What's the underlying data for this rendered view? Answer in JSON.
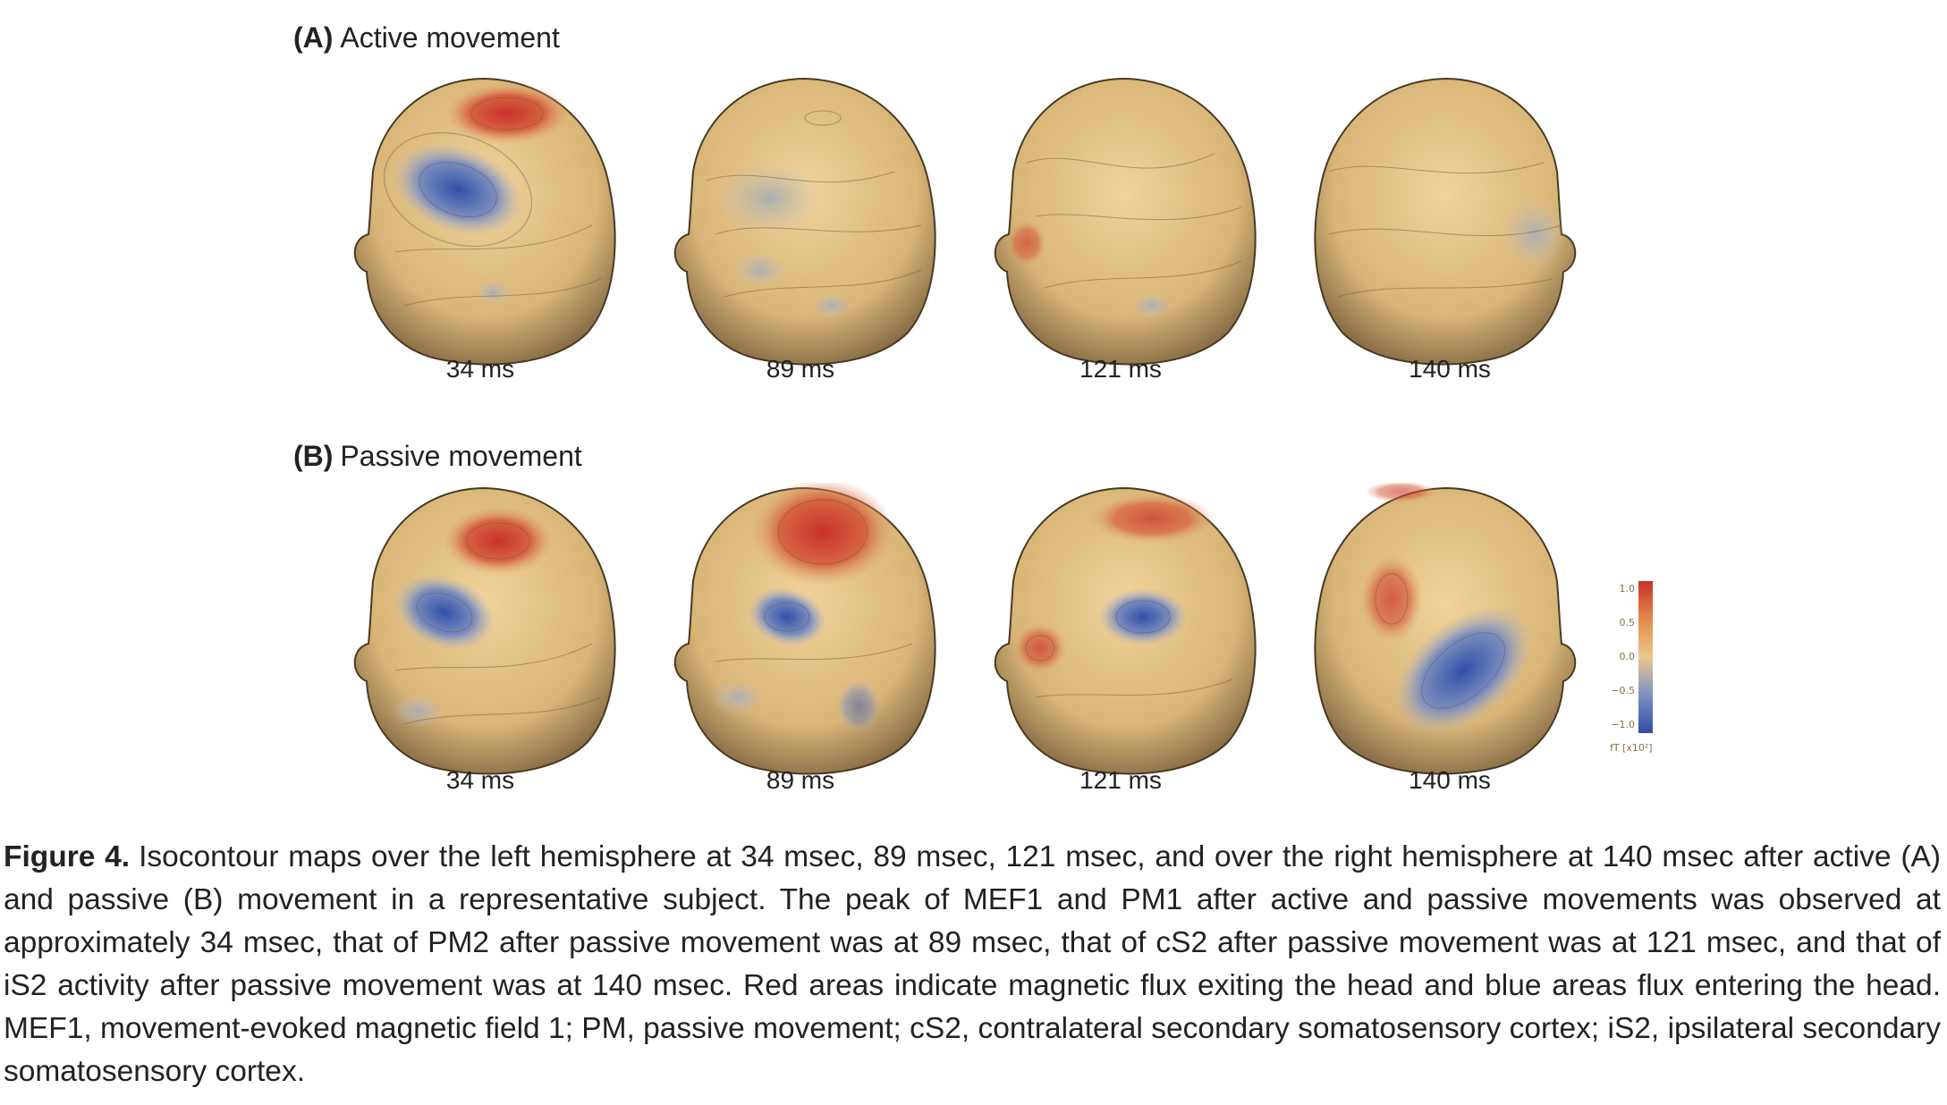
{
  "panels": [
    {
      "label": "(A)",
      "title": "Active movement",
      "times": [
        "34 ms",
        "89 ms",
        "121 ms",
        "140 ms"
      ]
    },
    {
      "label": "(B)",
      "title": "Passive movement",
      "times": [
        "34 ms",
        "89 ms",
        "121 ms",
        "140 ms"
      ]
    }
  ],
  "colorbar": {
    "ticks": [
      "1.0",
      "0.5",
      "0.0",
      "−0.5",
      "−1.0"
    ],
    "unit": "fT [x10²]",
    "colors": {
      "max": "#c8302a",
      "mid": "#e9c98d",
      "min": "#2f4ea6"
    }
  },
  "caption": {
    "figure_label": "Figure 4.",
    "text": "Isocontour maps over the left hemisphere at 34 msec, 89 msec, 121 msec, and over the right hemisphere at 140 msec after active (A) and passive (B) movement in a representative subject. The peak of MEF1 and PM1 after active and passive movements was observed at approximately 34 msec, that of PM2 after passive movement was at 89 msec, that of cS2 after passive movement was at 121 msec, and that of iS2 activity after passive movement was at 140 msec. Red areas indicate magnetic flux exiting the head and blue areas flux entering the head. MEF1, movement-evoked magnetic field 1; PM, passive movement; cS2, contralateral secondary somatosensory cortex; iS2, ipsilateral secondary somatosensory cortex."
  }
}
